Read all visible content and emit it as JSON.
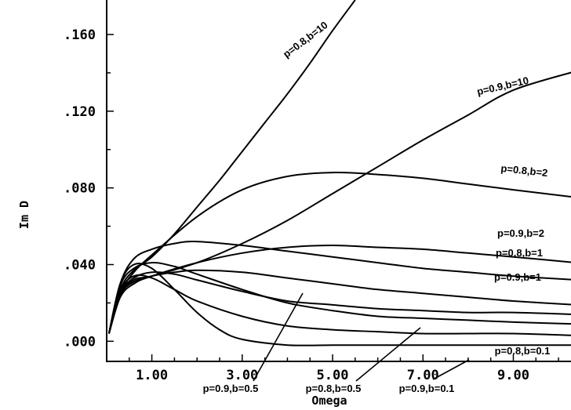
{
  "chart_data": {
    "type": "line",
    "xlabel": "Omega",
    "ylabel": "Im D",
    "xlim": [
      0.0,
      10.45
    ],
    "ylim": [
      -0.0105,
      0.178
    ],
    "x_ticks": [
      1.0,
      3.0,
      5.0,
      7.0,
      9.0
    ],
    "x_tick_labels": [
      "1.00",
      "3.00",
      "5.00",
      "7.00",
      "9.00"
    ],
    "y_ticks": [
      0.0,
      0.04,
      0.08,
      0.12,
      0.16
    ],
    "y_tick_labels": [
      ".000",
      ".040",
      ".080",
      ".120",
      ".160"
    ],
    "grid": false,
    "series": [
      {
        "name": "p=0.8,b=10",
        "x": [
          0.05,
          0.3,
          0.6,
          1.0,
          1.5,
          2.0,
          2.5,
          3.0,
          3.5,
          4.0,
          4.5,
          5.0,
          5.5
        ],
        "y": [
          0.004,
          0.027,
          0.037,
          0.044,
          0.056,
          0.07,
          0.084,
          0.099,
          0.114,
          0.129,
          0.145,
          0.162,
          0.178
        ]
      },
      {
        "name": "p=0.9,b=10",
        "x": [
          0.05,
          0.3,
          0.6,
          1.0,
          2.0,
          3.0,
          4.0,
          5.0,
          6.0,
          7.0,
          8.0,
          9.0,
          10.4
        ],
        "y": [
          0.004,
          0.024,
          0.032,
          0.034,
          0.041,
          0.051,
          0.063,
          0.077,
          0.091,
          0.105,
          0.118,
          0.131,
          0.141
        ]
      },
      {
        "name": "p=0.8,b=2",
        "x": [
          0.05,
          0.3,
          0.6,
          1.0,
          2.0,
          3.0,
          4.0,
          5.0,
          6.0,
          7.0,
          8.0,
          9.0,
          10.4
        ],
        "y": [
          0.004,
          0.025,
          0.036,
          0.045,
          0.065,
          0.079,
          0.086,
          0.088,
          0.087,
          0.085,
          0.082,
          0.079,
          0.075
        ]
      },
      {
        "name": "p=0.9,b=2",
        "x": [
          0.05,
          0.3,
          0.6,
          1.0,
          2.0,
          3.0,
          4.0,
          5.0,
          6.0,
          7.0,
          8.0,
          9.0,
          10.4
        ],
        "y": [
          0.004,
          0.023,
          0.03,
          0.034,
          0.041,
          0.046,
          0.049,
          0.05,
          0.049,
          0.048,
          0.046,
          0.044,
          0.041
        ]
      },
      {
        "name": "p=0.8,b=1",
        "x": [
          0.05,
          0.3,
          0.6,
          1.0,
          1.5,
          2.0,
          3.0,
          4.0,
          5.0,
          6.0,
          7.0,
          8.0,
          9.0,
          10.4
        ],
        "y": [
          0.004,
          0.03,
          0.043,
          0.048,
          0.051,
          0.052,
          0.05,
          0.047,
          0.044,
          0.041,
          0.038,
          0.036,
          0.034,
          0.032
        ]
      },
      {
        "name": "p=0.9,b=1",
        "x": [
          0.05,
          0.3,
          0.6,
          1.0,
          1.5,
          2.0,
          3.0,
          4.0,
          5.0,
          6.0,
          7.0,
          8.0,
          9.0,
          10.4
        ],
        "y": [
          0.004,
          0.024,
          0.031,
          0.034,
          0.036,
          0.037,
          0.036,
          0.033,
          0.03,
          0.027,
          0.025,
          0.023,
          0.021,
          0.019
        ]
      },
      {
        "name": "p=0.9,b=0.5",
        "x": [
          0.05,
          0.3,
          0.6,
          1.0,
          1.5,
          2.0,
          3.0,
          4.0,
          5.0,
          6.0,
          7.0,
          8.0,
          9.0,
          10.4
        ],
        "y": [
          0.004,
          0.025,
          0.033,
          0.036,
          0.035,
          0.032,
          0.026,
          0.021,
          0.019,
          0.017,
          0.016,
          0.015,
          0.015,
          0.014
        ]
      },
      {
        "name": "p=0.8,b=0.5",
        "x": [
          0.05,
          0.3,
          0.6,
          1.0,
          1.5,
          2.0,
          3.0,
          4.0,
          5.0,
          6.0,
          7.0,
          8.0,
          9.0,
          10.4
        ],
        "y": [
          0.004,
          0.029,
          0.038,
          0.041,
          0.039,
          0.035,
          0.027,
          0.02,
          0.016,
          0.013,
          0.012,
          0.011,
          0.01,
          0.009
        ]
      },
      {
        "name": "p=0.9,b=0.1",
        "x": [
          0.05,
          0.3,
          0.6,
          1.0,
          1.5,
          2.0,
          3.0,
          4.0,
          5.0,
          6.0,
          7.0,
          8.0,
          9.0,
          10.4
        ],
        "y": [
          0.004,
          0.026,
          0.034,
          0.033,
          0.027,
          0.021,
          0.013,
          0.008,
          0.006,
          0.005,
          0.004,
          0.004,
          0.004,
          0.003
        ]
      },
      {
        "name": "p=0.8,b=0.1",
        "x": [
          0.05,
          0.3,
          0.6,
          1.0,
          1.5,
          2.0,
          2.5,
          3.0,
          4.0,
          5.0,
          6.0,
          7.0,
          8.0,
          9.0,
          10.4
        ],
        "y": [
          0.004,
          0.03,
          0.04,
          0.038,
          0.027,
          0.015,
          0.006,
          0.001,
          -0.002,
          -0.002,
          -0.002,
          -0.002,
          -0.002,
          -0.002,
          -0.002
        ]
      }
    ]
  }
}
